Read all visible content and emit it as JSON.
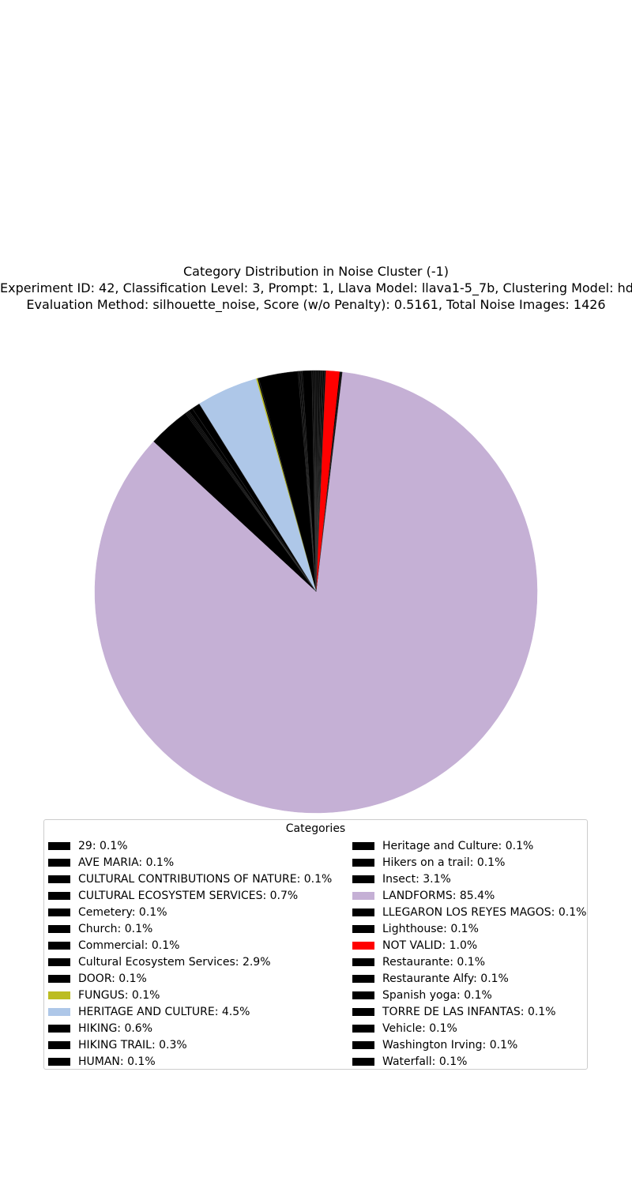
{
  "chart_data": {
    "type": "pie",
    "title": "Category Distribution in Noise Cluster (-1)",
    "subtitle_lines": [
      "Experiment ID: 42, Classification Level: 3, Prompt: 1, Llava Model: llava1-5_7b, Clustering Model: hdbscan",
      "Evaluation Method: silhouette_noise, Score (w/o Penalty): 0.5161, Total Noise Images: 1426"
    ],
    "legend_title": "Categories",
    "legend_placement": "lower-center",
    "start_angle_deg": 90,
    "direction": "counterclockwise",
    "slices": [
      {
        "label": "29: 0.1%",
        "value": 0.1,
        "color": "#000000"
      },
      {
        "label": "AVE MARIA: 0.1%",
        "value": 0.1,
        "color": "#000000"
      },
      {
        "label": "CULTURAL CONTRIBUTIONS OF NATURE: 0.1%",
        "value": 0.1,
        "color": "#000000"
      },
      {
        "label": "CULTURAL ECOSYSTEM SERVICES: 0.7%",
        "value": 0.7,
        "color": "#000000"
      },
      {
        "label": "Cemetery: 0.1%",
        "value": 0.1,
        "color": "#000000"
      },
      {
        "label": "Church: 0.1%",
        "value": 0.1,
        "color": "#000000"
      },
      {
        "label": "Commercial: 0.1%",
        "value": 0.1,
        "color": "#000000"
      },
      {
        "label": "Cultural Ecosystem Services: 2.9%",
        "value": 2.9,
        "color": "#000000"
      },
      {
        "label": "DOOR: 0.1%",
        "value": 0.1,
        "color": "#000000"
      },
      {
        "label": "FUNGUS: 0.1%",
        "value": 0.1,
        "color": "#bcbd22"
      },
      {
        "label": "HERITAGE AND CULTURE: 4.5%",
        "value": 4.5,
        "color": "#aec7e8"
      },
      {
        "label": "HIKING: 0.6%",
        "value": 0.6,
        "color": "#000000"
      },
      {
        "label": "HIKING TRAIL: 0.3%",
        "value": 0.3,
        "color": "#000000"
      },
      {
        "label": "HUMAN: 0.1%",
        "value": 0.1,
        "color": "#000000"
      },
      {
        "label": "Heritage and Culture: 0.1%",
        "value": 0.1,
        "color": "#000000"
      },
      {
        "label": "Hikers on a trail: 0.1%",
        "value": 0.1,
        "color": "#000000"
      },
      {
        "label": "Insect: 3.1%",
        "value": 3.1,
        "color": "#000000"
      },
      {
        "label": "LANDFORMS: 85.4%",
        "value": 85.4,
        "color": "#c5b0d5"
      },
      {
        "label": "LLEGARON LOS REYES MAGOS: 0.1%",
        "value": 0.1,
        "color": "#000000"
      },
      {
        "label": "Lighthouse: 0.1%",
        "value": 0.1,
        "color": "#000000"
      },
      {
        "label": "NOT VALID: 1.0%",
        "value": 1.0,
        "color": "#ff0000"
      },
      {
        "label": "Restaurante: 0.1%",
        "value": 0.1,
        "color": "#000000"
      },
      {
        "label": "Restaurante Alfy: 0.1%",
        "value": 0.1,
        "color": "#000000"
      },
      {
        "label": "Spanish yoga: 0.1%",
        "value": 0.1,
        "color": "#000000"
      },
      {
        "label": "TORRE DE LAS INFANTAS: 0.1%",
        "value": 0.1,
        "color": "#000000"
      },
      {
        "label": "Vehicle: 0.1%",
        "value": 0.1,
        "color": "#000000"
      },
      {
        "label": "Washington Irving: 0.1%",
        "value": 0.1,
        "color": "#000000"
      },
      {
        "label": "Waterfall: 0.1%",
        "value": 0.1,
        "color": "#000000"
      }
    ]
  }
}
